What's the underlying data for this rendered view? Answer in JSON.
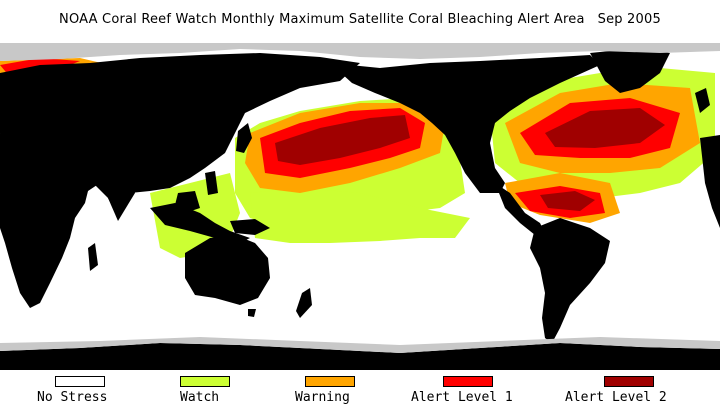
{
  "header": {
    "title": "NOAA Coral Reef Watch Monthly Maximum Satellite Coral Bleaching Alert Area   Sep 2005"
  },
  "colors": {
    "land": "#000000",
    "ice": "#c8c8c8",
    "no_stress": "#ffffff",
    "watch": "#ccff33",
    "warning": "#ffa500",
    "alert_level_1": "#ff0000",
    "alert_level_2": "#a00000"
  },
  "legend": {
    "items": [
      {
        "label": "No Stress",
        "color": "#ffffff"
      },
      {
        "label": "Watch",
        "color": "#ccff33"
      },
      {
        "label": "Warning",
        "color": "#ffa500"
      },
      {
        "label": "Alert Level 1",
        "color": "#ff0000"
      },
      {
        "label": "Alert Level 2",
        "color": "#a00000"
      }
    ]
  }
}
